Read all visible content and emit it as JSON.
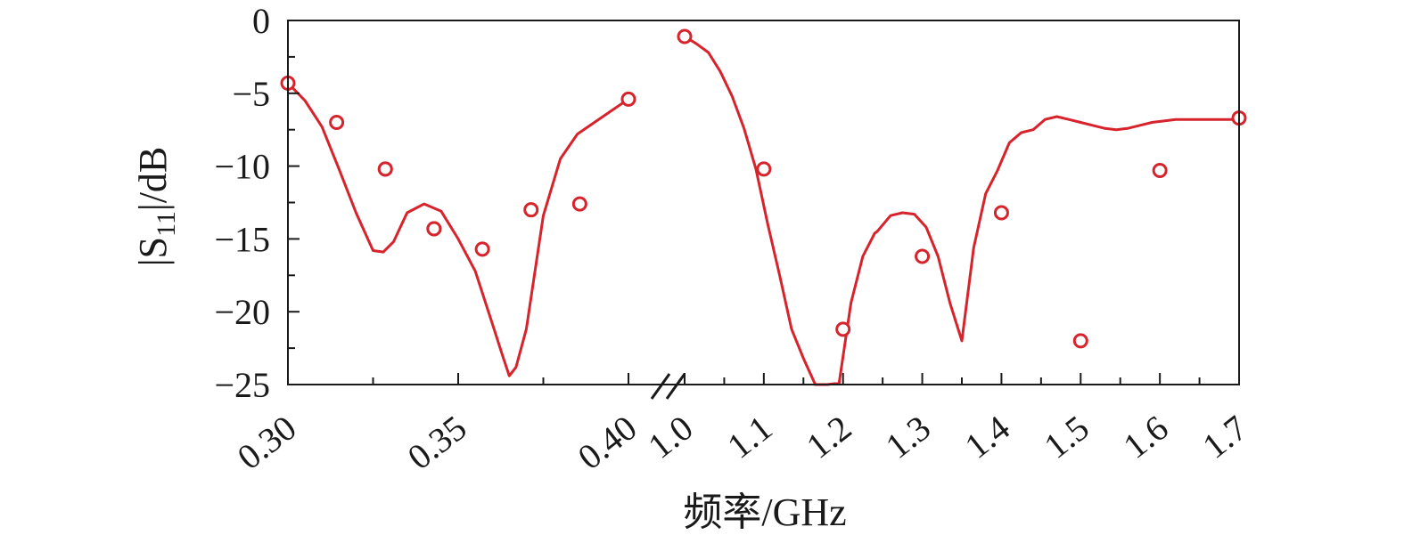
{
  "chart_data": {
    "type": "line",
    "ylabel": "|S11|/dB",
    "xlabel": "频率/GHz",
    "ylim": [
      -25,
      0
    ],
    "yticks": [
      0,
      -5,
      -10,
      -15,
      -20,
      -25
    ],
    "ytick_labels": [
      "0",
      "−5",
      "−10",
      "−15",
      "−20",
      "−25"
    ],
    "x_axis_broken": true,
    "segments": [
      {
        "xlim": [
          0.3,
          0.4
        ],
        "xticks": [
          0.3,
          0.35,
          0.4
        ],
        "xtick_labels": [
          "0.30",
          "0.35",
          "0.40"
        ],
        "curve": {
          "x": [
            0.3,
            0.305,
            0.31,
            0.315,
            0.32,
            0.325,
            0.328,
            0.331,
            0.335,
            0.34,
            0.345,
            0.35,
            0.355,
            0.36,
            0.363,
            0.365,
            0.367,
            0.37,
            0.375,
            0.38,
            0.385,
            0.39,
            0.395,
            0.4
          ],
          "y": [
            -4.3,
            -5.5,
            -7.3,
            -10.2,
            -13.2,
            -15.8,
            -15.9,
            -15.2,
            -13.2,
            -12.6,
            -13.1,
            -15.0,
            -17.2,
            -20.8,
            -23.0,
            -24.4,
            -23.8,
            -21.2,
            -13.4,
            -9.5,
            -7.8,
            -7.0,
            -6.2,
            -5.4
          ]
        },
        "markers": {
          "x": [
            0.3,
            0.3143,
            0.3286,
            0.3429,
            0.3571,
            0.3714,
            0.3857,
            0.4,
            0.3286,
            0.3429
          ],
          "y": [
            -4.3,
            -7.0,
            -10.2,
            -14.3,
            -15.7,
            -13.0,
            -12.6,
            -5.4,
            -10.2,
            -14.3
          ]
        }
      },
      {
        "xlim": [
          1.0,
          1.7
        ],
        "xticks": [
          1.0,
          1.1,
          1.2,
          1.3,
          1.4,
          1.5,
          1.6,
          1.7
        ],
        "xtick_labels": [
          "1.0",
          "1.1",
          "1.2",
          "1.3",
          "1.4",
          "1.5",
          "1.6",
          "1.7"
        ],
        "curve": {
          "x": [
            1.0,
            1.015,
            1.03,
            1.045,
            1.06,
            1.075,
            1.09,
            1.105,
            1.12,
            1.135,
            1.15,
            1.165,
            1.18,
            1.195,
            1.21,
            1.225,
            1.24,
            1.243,
            1.26,
            1.275,
            1.29,
            1.305,
            1.32,
            1.335,
            1.35,
            1.365,
            1.38,
            1.395,
            1.41,
            1.425,
            1.44,
            1.455,
            1.47,
            1.485,
            1.5,
            1.515,
            1.53,
            1.545,
            1.56,
            1.575,
            1.59,
            1.605,
            1.62,
            1.635,
            1.65,
            1.665,
            1.68,
            1.695,
            1.7
          ],
          "y": [
            -1.1,
            -1.6,
            -2.2,
            -3.5,
            -5.2,
            -7.4,
            -10.2,
            -14.0,
            -17.5,
            -21.2,
            -23.2,
            -25.0,
            -25.0,
            -24.9,
            -19.4,
            -16.2,
            -14.6,
            -14.5,
            -13.4,
            -13.2,
            -13.3,
            -14.2,
            -16.2,
            -19.4,
            -22.0,
            -15.6,
            -11.9,
            -10.3,
            -8.4,
            -7.7,
            -7.5,
            -6.8,
            -6.6,
            -6.8,
            -7.0,
            -7.2,
            -7.4,
            -7.5,
            -7.4,
            -7.2,
            -7.0,
            -6.9,
            -6.8,
            -6.8,
            -6.8,
            -6.8,
            -6.8,
            -6.8,
            -6.7
          ]
        },
        "markers": {
          "x": [
            1.0,
            1.1,
            1.2,
            1.3,
            1.4,
            1.5,
            1.6,
            1.7
          ],
          "y": [
            -1.1,
            -10.2,
            -21.2,
            -16.2,
            -13.2,
            -22.0,
            -10.3,
            -6.7
          ]
        }
      }
    ],
    "color": "#d7232b"
  }
}
